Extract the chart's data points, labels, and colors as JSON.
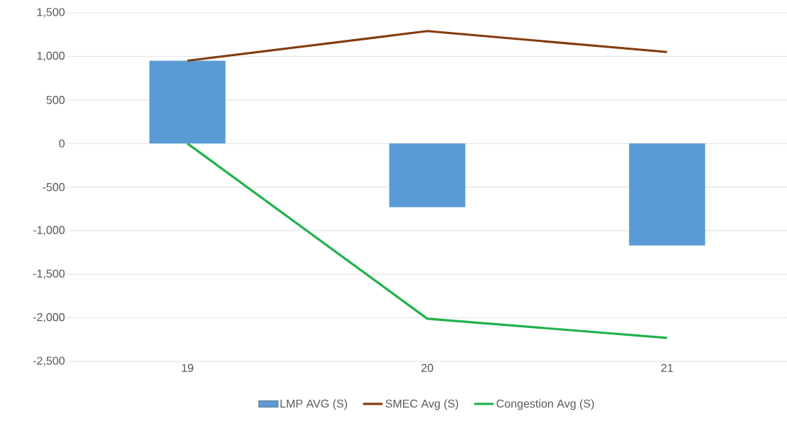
{
  "chart_data": {
    "type": "bar",
    "categories": [
      "19",
      "20",
      "21"
    ],
    "series": [
      {
        "name": "LMP AVG (S)",
        "type": "bar",
        "color": "#5b9bd5",
        "values": [
          950,
          -730,
          -1170
        ]
      },
      {
        "name": "SMEC  Avg (S)",
        "type": "line",
        "color": "#843c0c",
        "values": [
          950,
          1290,
          1050
        ]
      },
      {
        "name": "Congestion  Avg (S)",
        "type": "line",
        "color": "#22b14c",
        "values": [
          0,
          -2010,
          -2230
        ]
      }
    ],
    "ylim": [
      -2500,
      1500
    ],
    "yticks": [
      {
        "value": -2500,
        "label": "-2,500"
      },
      {
        "value": -2000,
        "label": "-2,000"
      },
      {
        "value": -1500,
        "label": "-1,500"
      },
      {
        "value": -1000,
        "label": "-1,000"
      },
      {
        "value": -500,
        "label": "-500"
      },
      0,
      500,
      {
        "value": 1000,
        "label": "1,000"
      },
      {
        "value": 1500,
        "label": "1,500"
      }
    ],
    "grid": "y",
    "legend": "bottom"
  }
}
